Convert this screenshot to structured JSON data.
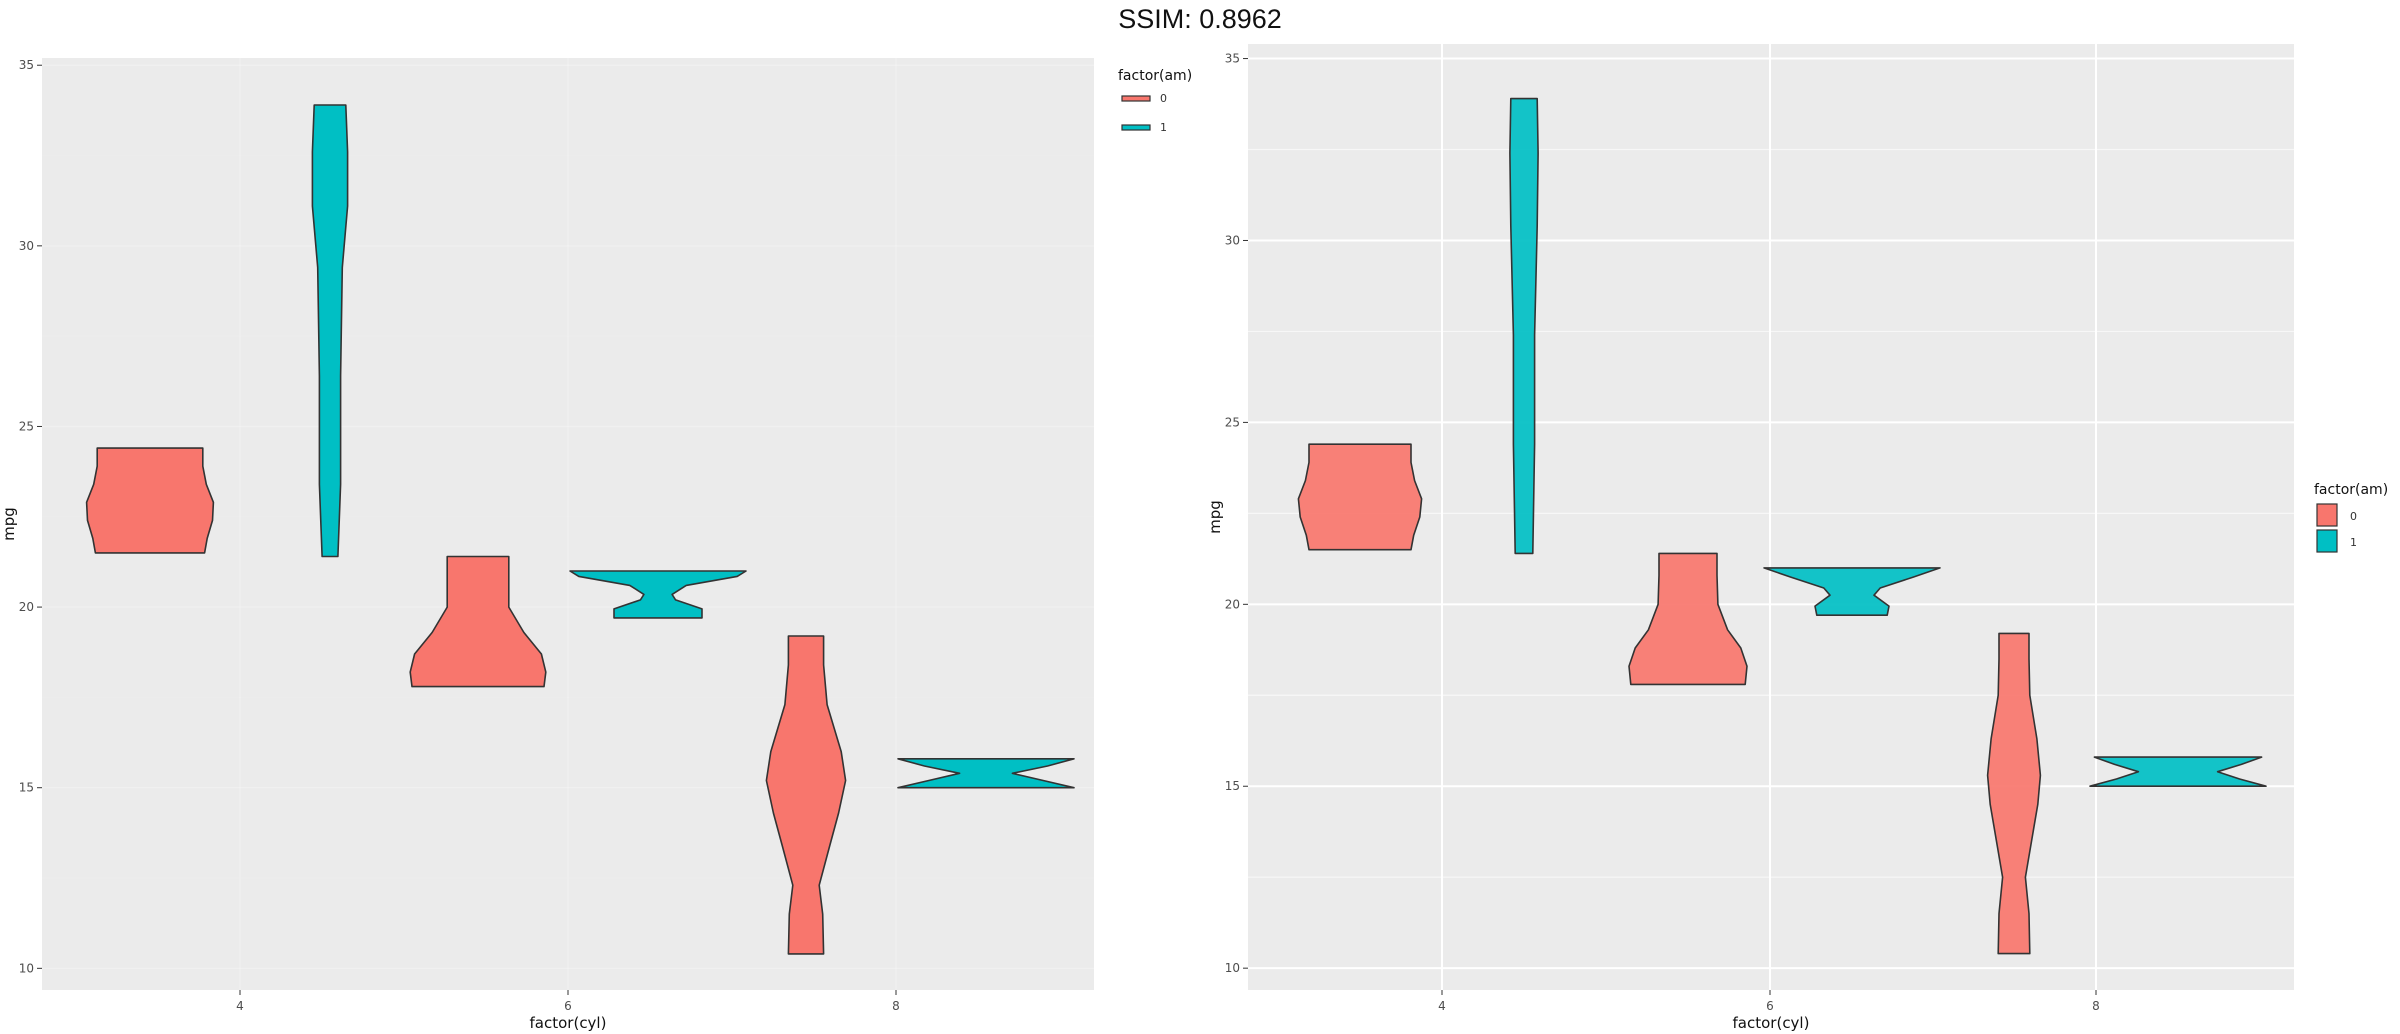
{
  "figure": {
    "title": "SSIM: 0.8962"
  },
  "colors": {
    "panel_bg": "#EBEBEB",
    "grid_major": "#FFFFFF",
    "outline": "#333333",
    "am0": "#F8766D",
    "am1": "#00BFC4"
  },
  "chart_data": [
    {
      "type": "violin",
      "xlabel": "factor(cyl)",
      "ylabel": "mpg",
      "categories": [
        "4",
        "6",
        "8"
      ],
      "ylim": [
        9.4,
        35.2
      ],
      "yticks": [
        10,
        15,
        20,
        25,
        30,
        35
      ],
      "grid": true,
      "legend": {
        "title": "factor(am)",
        "placement": "top-right",
        "entries": [
          "0",
          "1"
        ]
      },
      "series": [
        {
          "name": "0",
          "category": "4",
          "dodge": -1,
          "ymin": 21.5,
          "ymax": 24.4,
          "profile": [
            [
              21.5,
              0.62
            ],
            [
              21.9,
              0.65
            ],
            [
              22.4,
              0.71
            ],
            [
              22.9,
              0.72
            ],
            [
              23.4,
              0.64
            ],
            [
              23.9,
              0.6
            ],
            [
              24.4,
              0.6
            ]
          ]
        },
        {
          "name": "1",
          "category": "4",
          "dodge": 1,
          "ymin": 21.4,
          "ymax": 33.9,
          "profile": [
            [
              21.4,
              0.09
            ],
            [
              23.4,
              0.12
            ],
            [
              26.4,
              0.12
            ],
            [
              29.4,
              0.14
            ],
            [
              31.1,
              0.2
            ],
            [
              32.6,
              0.2
            ],
            [
              33.9,
              0.18
            ]
          ]
        },
        {
          "name": "0",
          "category": "6",
          "dodge": -1,
          "ymin": 17.8,
          "ymax": 21.4,
          "profile": [
            [
              17.8,
              0.75
            ],
            [
              18.2,
              0.77
            ],
            [
              18.7,
              0.72
            ],
            [
              19.3,
              0.52
            ],
            [
              20.0,
              0.35
            ],
            [
              20.8,
              0.35
            ],
            [
              21.4,
              0.35
            ]
          ]
        },
        {
          "name": "1",
          "category": "6",
          "dodge": 1,
          "ymin": 19.7,
          "ymax": 21.0,
          "profile": [
            [
              19.7,
              0.5
            ],
            [
              19.95,
              0.5
            ],
            [
              20.2,
              0.2
            ],
            [
              20.35,
              0.16
            ],
            [
              20.6,
              0.32
            ],
            [
              20.85,
              0.9
            ],
            [
              21.0,
              1.0
            ]
          ]
        },
        {
          "name": "0",
          "category": "8",
          "dodge": -1,
          "ymin": 10.4,
          "ymax": 19.2,
          "profile": [
            [
              10.4,
              0.2
            ],
            [
              11.5,
              0.19
            ],
            [
              12.3,
              0.15
            ],
            [
              13.4,
              0.27
            ],
            [
              14.3,
              0.37
            ],
            [
              15.2,
              0.45
            ],
            [
              16.0,
              0.4
            ],
            [
              17.3,
              0.24
            ],
            [
              18.4,
              0.2
            ],
            [
              19.2,
              0.2
            ]
          ]
        },
        {
          "name": "1",
          "category": "8",
          "dodge": 1,
          "ymin": 15.0,
          "ymax": 15.8,
          "profile": [
            [
              15.0,
              1.0
            ],
            [
              15.2,
              0.65
            ],
            [
              15.4,
              0.3
            ],
            [
              15.6,
              0.7
            ],
            [
              15.8,
              1.0
            ]
          ]
        }
      ]
    },
    {
      "type": "violin",
      "xlabel": "factor(cyl)",
      "ylabel": "mpg",
      "categories": [
        "4",
        "6",
        "8"
      ],
      "ylim": [
        9.4,
        35.4
      ],
      "yticks": [
        10,
        15,
        20,
        25,
        30,
        35
      ],
      "grid": true,
      "legend": {
        "title": "factor(am)",
        "placement": "right",
        "entries": [
          "0",
          "1"
        ]
      },
      "series": [
        {
          "name": "0",
          "category": "4",
          "dodge": -1,
          "ymin": 21.5,
          "ymax": 24.4,
          "profile": [
            [
              21.5,
              0.58
            ],
            [
              21.9,
              0.61
            ],
            [
              22.4,
              0.68
            ],
            [
              22.9,
              0.7
            ],
            [
              23.4,
              0.62
            ],
            [
              23.9,
              0.58
            ],
            [
              24.4,
              0.58
            ]
          ]
        },
        {
          "name": "1",
          "category": "4",
          "dodge": 1,
          "ymin": 21.4,
          "ymax": 33.9,
          "profile": [
            [
              21.4,
              0.1
            ],
            [
              24.4,
              0.12
            ],
            [
              27.4,
              0.12
            ],
            [
              30.4,
              0.15
            ],
            [
              32.4,
              0.16
            ],
            [
              33.9,
              0.15
            ]
          ]
        },
        {
          "name": "0",
          "category": "6",
          "dodge": -1,
          "ymin": 17.8,
          "ymax": 21.4,
          "profile": [
            [
              17.8,
              0.65
            ],
            [
              18.3,
              0.67
            ],
            [
              18.8,
              0.6
            ],
            [
              19.3,
              0.45
            ],
            [
              20.0,
              0.34
            ],
            [
              20.8,
              0.33
            ],
            [
              21.4,
              0.33
            ]
          ]
        },
        {
          "name": "1",
          "category": "6",
          "dodge": 1,
          "ymin": 19.7,
          "ymax": 21.0,
          "profile": [
            [
              19.7,
              0.4
            ],
            [
              19.95,
              0.42
            ],
            [
              20.25,
              0.25
            ],
            [
              20.45,
              0.32
            ],
            [
              20.75,
              0.7
            ],
            [
              21.0,
              1.0
            ]
          ]
        },
        {
          "name": "0",
          "category": "8",
          "dodge": -1,
          "ymin": 10.4,
          "ymax": 19.2,
          "profile": [
            [
              10.4,
              0.18
            ],
            [
              11.5,
              0.17
            ],
            [
              12.5,
              0.13
            ],
            [
              13.5,
              0.2
            ],
            [
              14.5,
              0.27
            ],
            [
              15.3,
              0.3
            ],
            [
              16.3,
              0.26
            ],
            [
              17.5,
              0.18
            ],
            [
              18.5,
              0.17
            ],
            [
              19.2,
              0.17
            ]
          ]
        },
        {
          "name": "1",
          "category": "8",
          "dodge": 1,
          "ymin": 15.0,
          "ymax": 15.8,
          "profile": [
            [
              15.0,
              1.0
            ],
            [
              15.2,
              0.7
            ],
            [
              15.4,
              0.45
            ],
            [
              15.6,
              0.72
            ],
            [
              15.8,
              0.95
            ]
          ]
        }
      ]
    }
  ]
}
